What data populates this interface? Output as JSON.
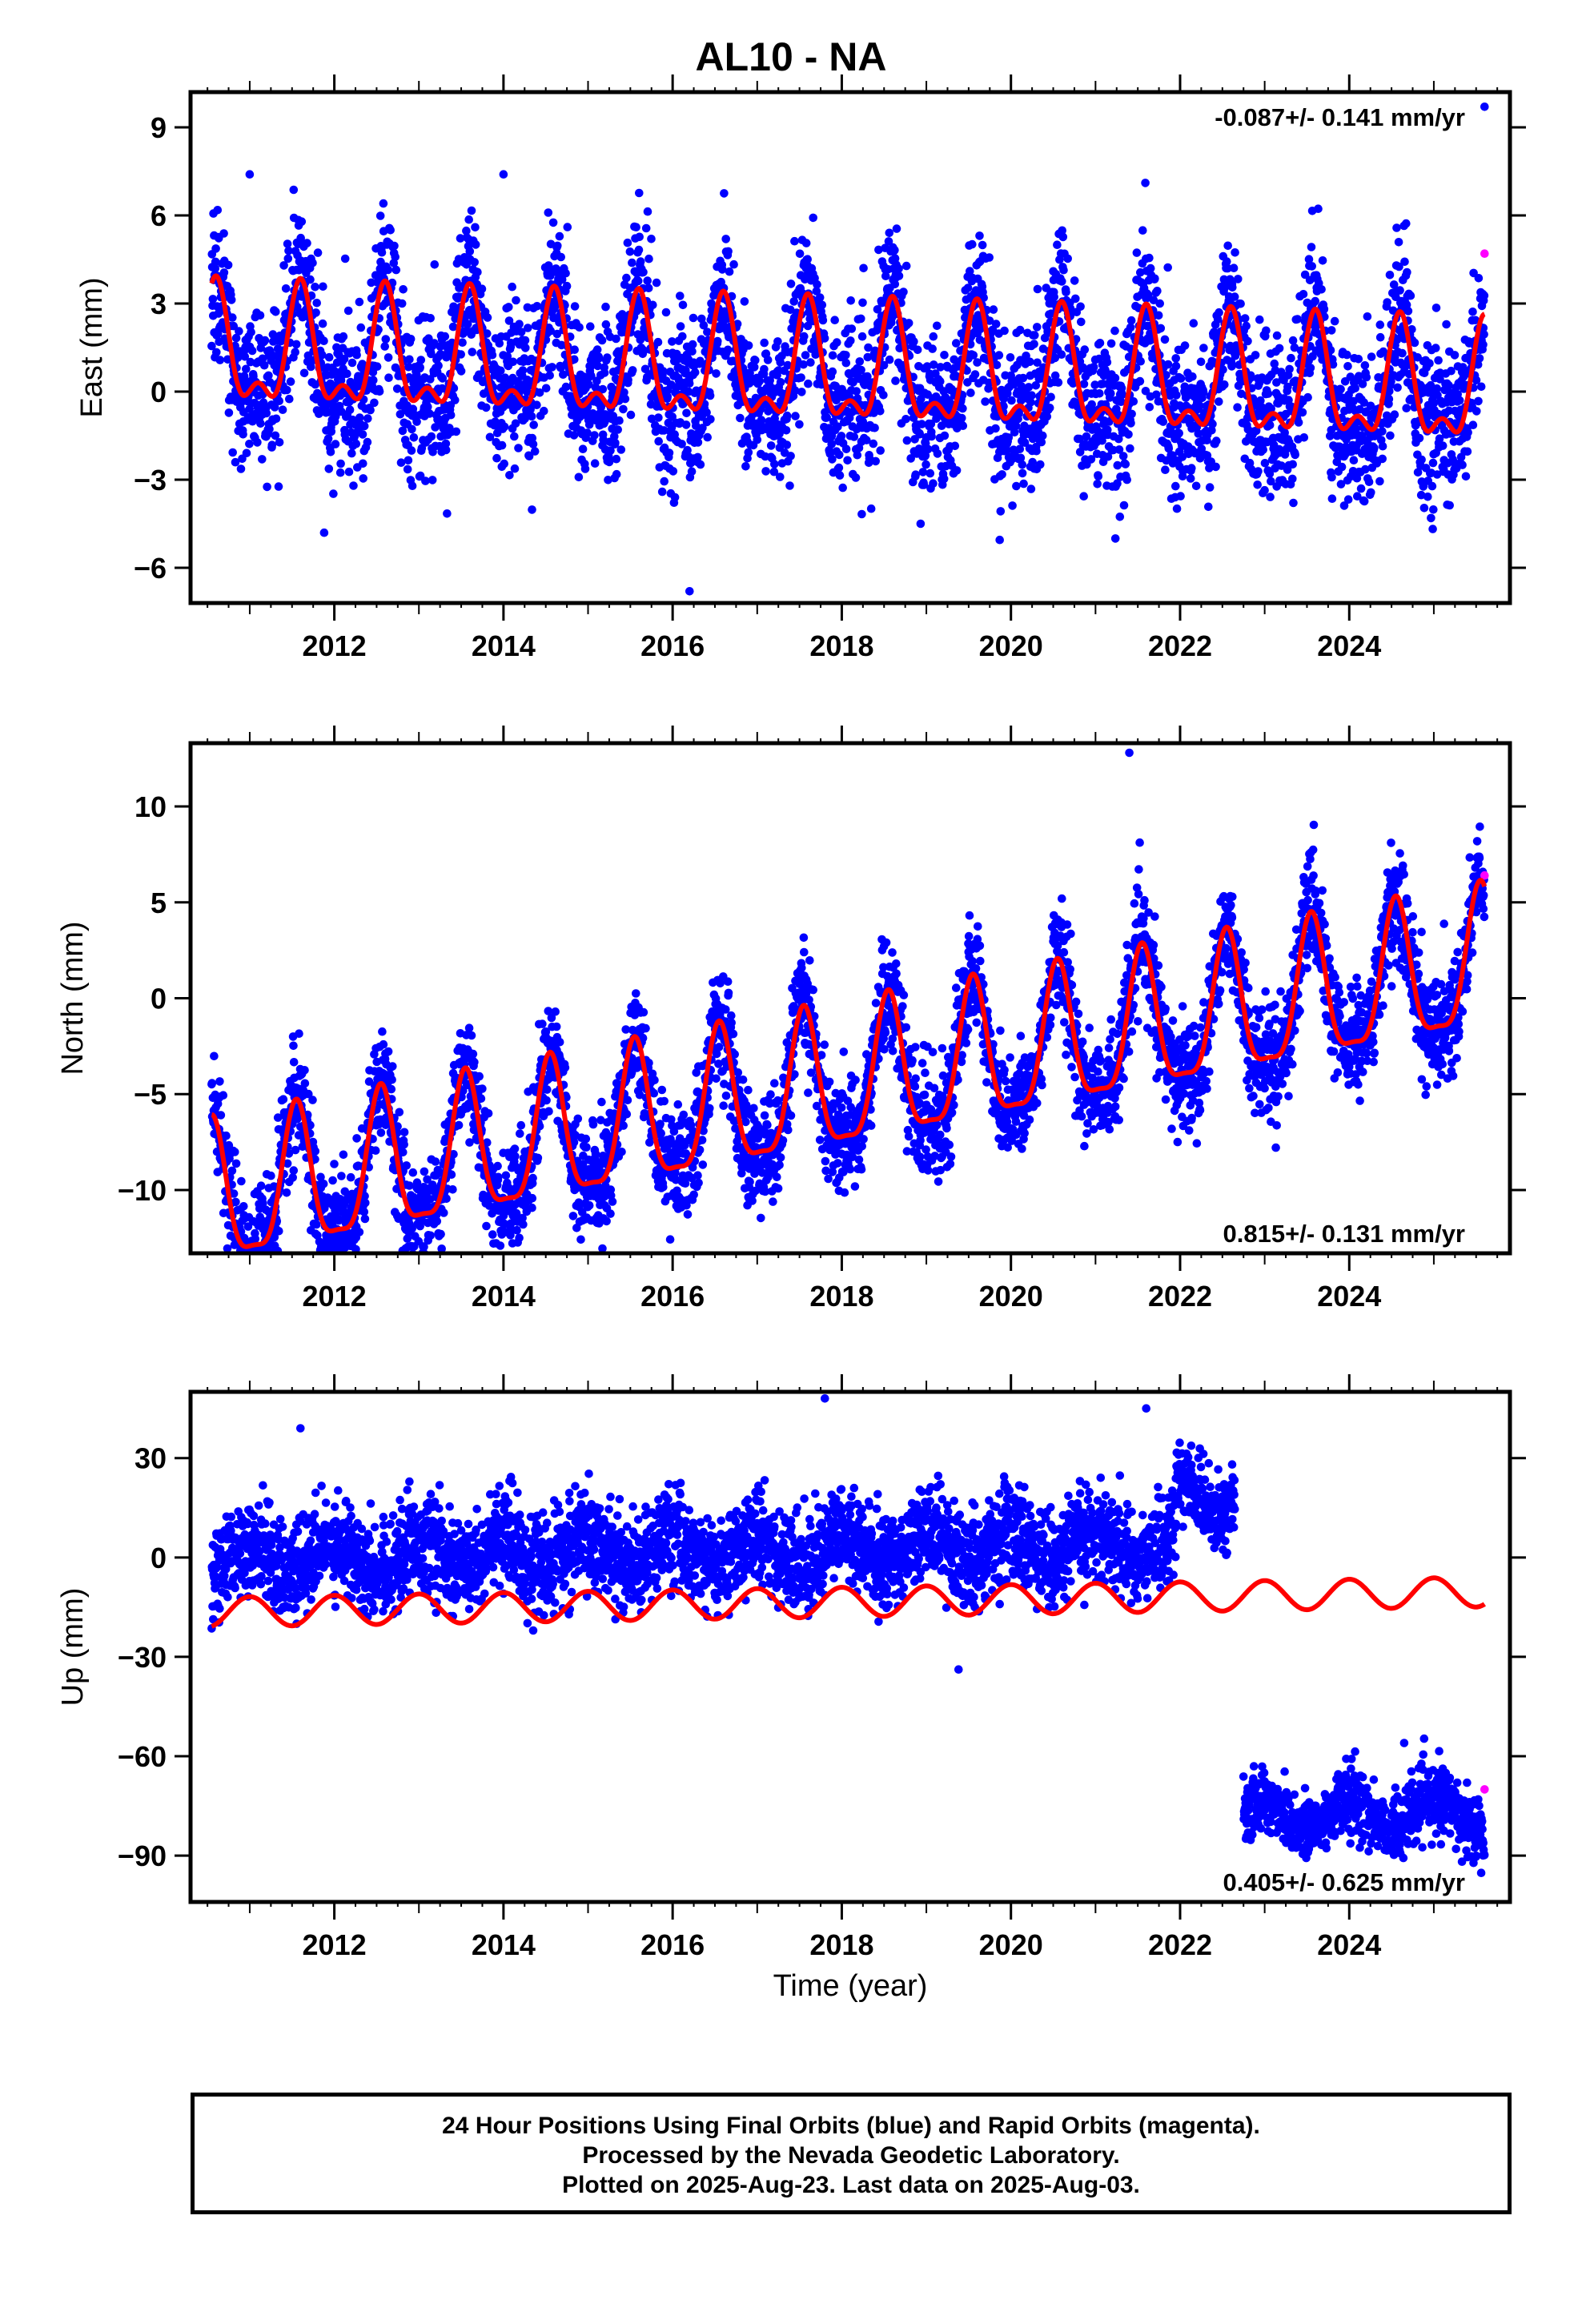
{
  "title": "AL10 - NA",
  "xlabel": "Time (year)",
  "footer": [
    "24 Hour Positions Using Final Orbits (blue) and Rapid Orbits (magenta).",
    "Processed by the Nevada Geodetic Laboratory.",
    "Plotted on 2025-Aug-23. Last data on 2025-Aug-03."
  ],
  "colors": {
    "final_orbits": "#0000ff",
    "rapid_orbits": "#ff00ff",
    "model": "#ff0000"
  },
  "chart_data": [
    {
      "type": "scatter",
      "ylabel": "East (mm)",
      "rate_text": "-0.087+/- 0.141 mm/yr",
      "xlim": [
        2010.3,
        2025.9
      ],
      "ylim": [
        -7.2,
        10.2
      ],
      "yticks": [
        {
          "v": -6,
          "label": "−6"
        },
        {
          "v": -3,
          "label": "−3"
        },
        {
          "v": 0,
          "label": "0"
        },
        {
          "v": 3,
          "label": "3"
        },
        {
          "v": 6,
          "label": "6"
        },
        {
          "v": 9,
          "label": "9"
        }
      ],
      "xticks": [
        2012,
        2014,
        2016,
        2018,
        2020,
        2022,
        2024
      ],
      "model": {
        "intercept": 0.6,
        "trend": -0.087,
        "annual_amp": 1.8,
        "annual_phase": 2011.6,
        "semi_amp": 0.9,
        "semi_phase": 2011.6,
        "steps": []
      },
      "noise_sd": 1.3,
      "outliers": [
        [
          2025.6,
          9.7
        ],
        [
          2014.0,
          7.4
        ],
        [
          2016.2,
          -6.8
        ],
        [
          2011.0,
          7.4
        ]
      ],
      "rapid_points": [
        [
          2025.6,
          4.7
        ]
      ]
    },
    {
      "type": "scatter",
      "ylabel": "North (mm)",
      "rate_text": "0.815+/- 0.131 mm/yr",
      "xlim": [
        2010.3,
        2025.9
      ],
      "ylim": [
        -13.3,
        13.3
      ],
      "yticks": [
        {
          "v": -10,
          "label": "−10"
        },
        {
          "v": -5,
          "label": "−5"
        },
        {
          "v": 0,
          "label": "0"
        },
        {
          "v": 5,
          "label": "5"
        },
        {
          "v": 10,
          "label": "10"
        }
      ],
      "xticks": [
        2012,
        2014,
        2016,
        2018,
        2020,
        2022,
        2024
      ],
      "model": {
        "intercept": -4.6,
        "trend": 0.815,
        "annual_amp": 3.6,
        "annual_phase": 2011.55,
        "semi_amp": 1.0,
        "semi_phase": 2011.55,
        "steps": []
      },
      "noise_sd": 1.4,
      "outliers": [
        [
          2021.4,
          12.8
        ],
        [
          2011.2,
          -12.8
        ]
      ],
      "rapid_points": [
        [
          2025.6,
          6.4
        ]
      ]
    },
    {
      "type": "scatter",
      "ylabel": "Up (mm)",
      "rate_text": "0.405+/- 0.625 mm/yr",
      "xlim": [
        2010.3,
        2025.9
      ],
      "ylim": [
        -104,
        50
      ],
      "yticks": [
        {
          "v": -90,
          "label": "−90"
        },
        {
          "v": -60,
          "label": "−60"
        },
        {
          "v": -30,
          "label": "−30"
        },
        {
          "v": 0,
          "label": "0"
        },
        {
          "v": 30,
          "label": "30"
        }
      ],
      "xticks": [
        2012,
        2014,
        2016,
        2018,
        2020,
        2022,
        2024
      ],
      "model": {
        "intercept": -13.5,
        "trend": 0.405,
        "annual_amp": 4.5,
        "annual_phase": 2011.0,
        "semi_amp": 0,
        "semi_phase": 2011.0,
        "steps": []
      },
      "point_segments": [
        {
          "start": 2010.55,
          "end": 2021.95,
          "offset": 16.0,
          "noise_sd": 7.0
        },
        {
          "start": 2021.95,
          "end": 2022.65,
          "offset": 30.0,
          "noise_sd": 5.0
        },
        {
          "start": 2022.75,
          "end": 2025.6,
          "offset": -66.5,
          "noise_sd": 5.0
        }
      ],
      "outliers": [
        [
          2017.8,
          48
        ],
        [
          2021.6,
          45
        ],
        [
          2011.6,
          39
        ],
        [
          2024.65,
          -56
        ]
      ],
      "rapid_points": [
        [
          2025.6,
          -70
        ]
      ]
    }
  ]
}
